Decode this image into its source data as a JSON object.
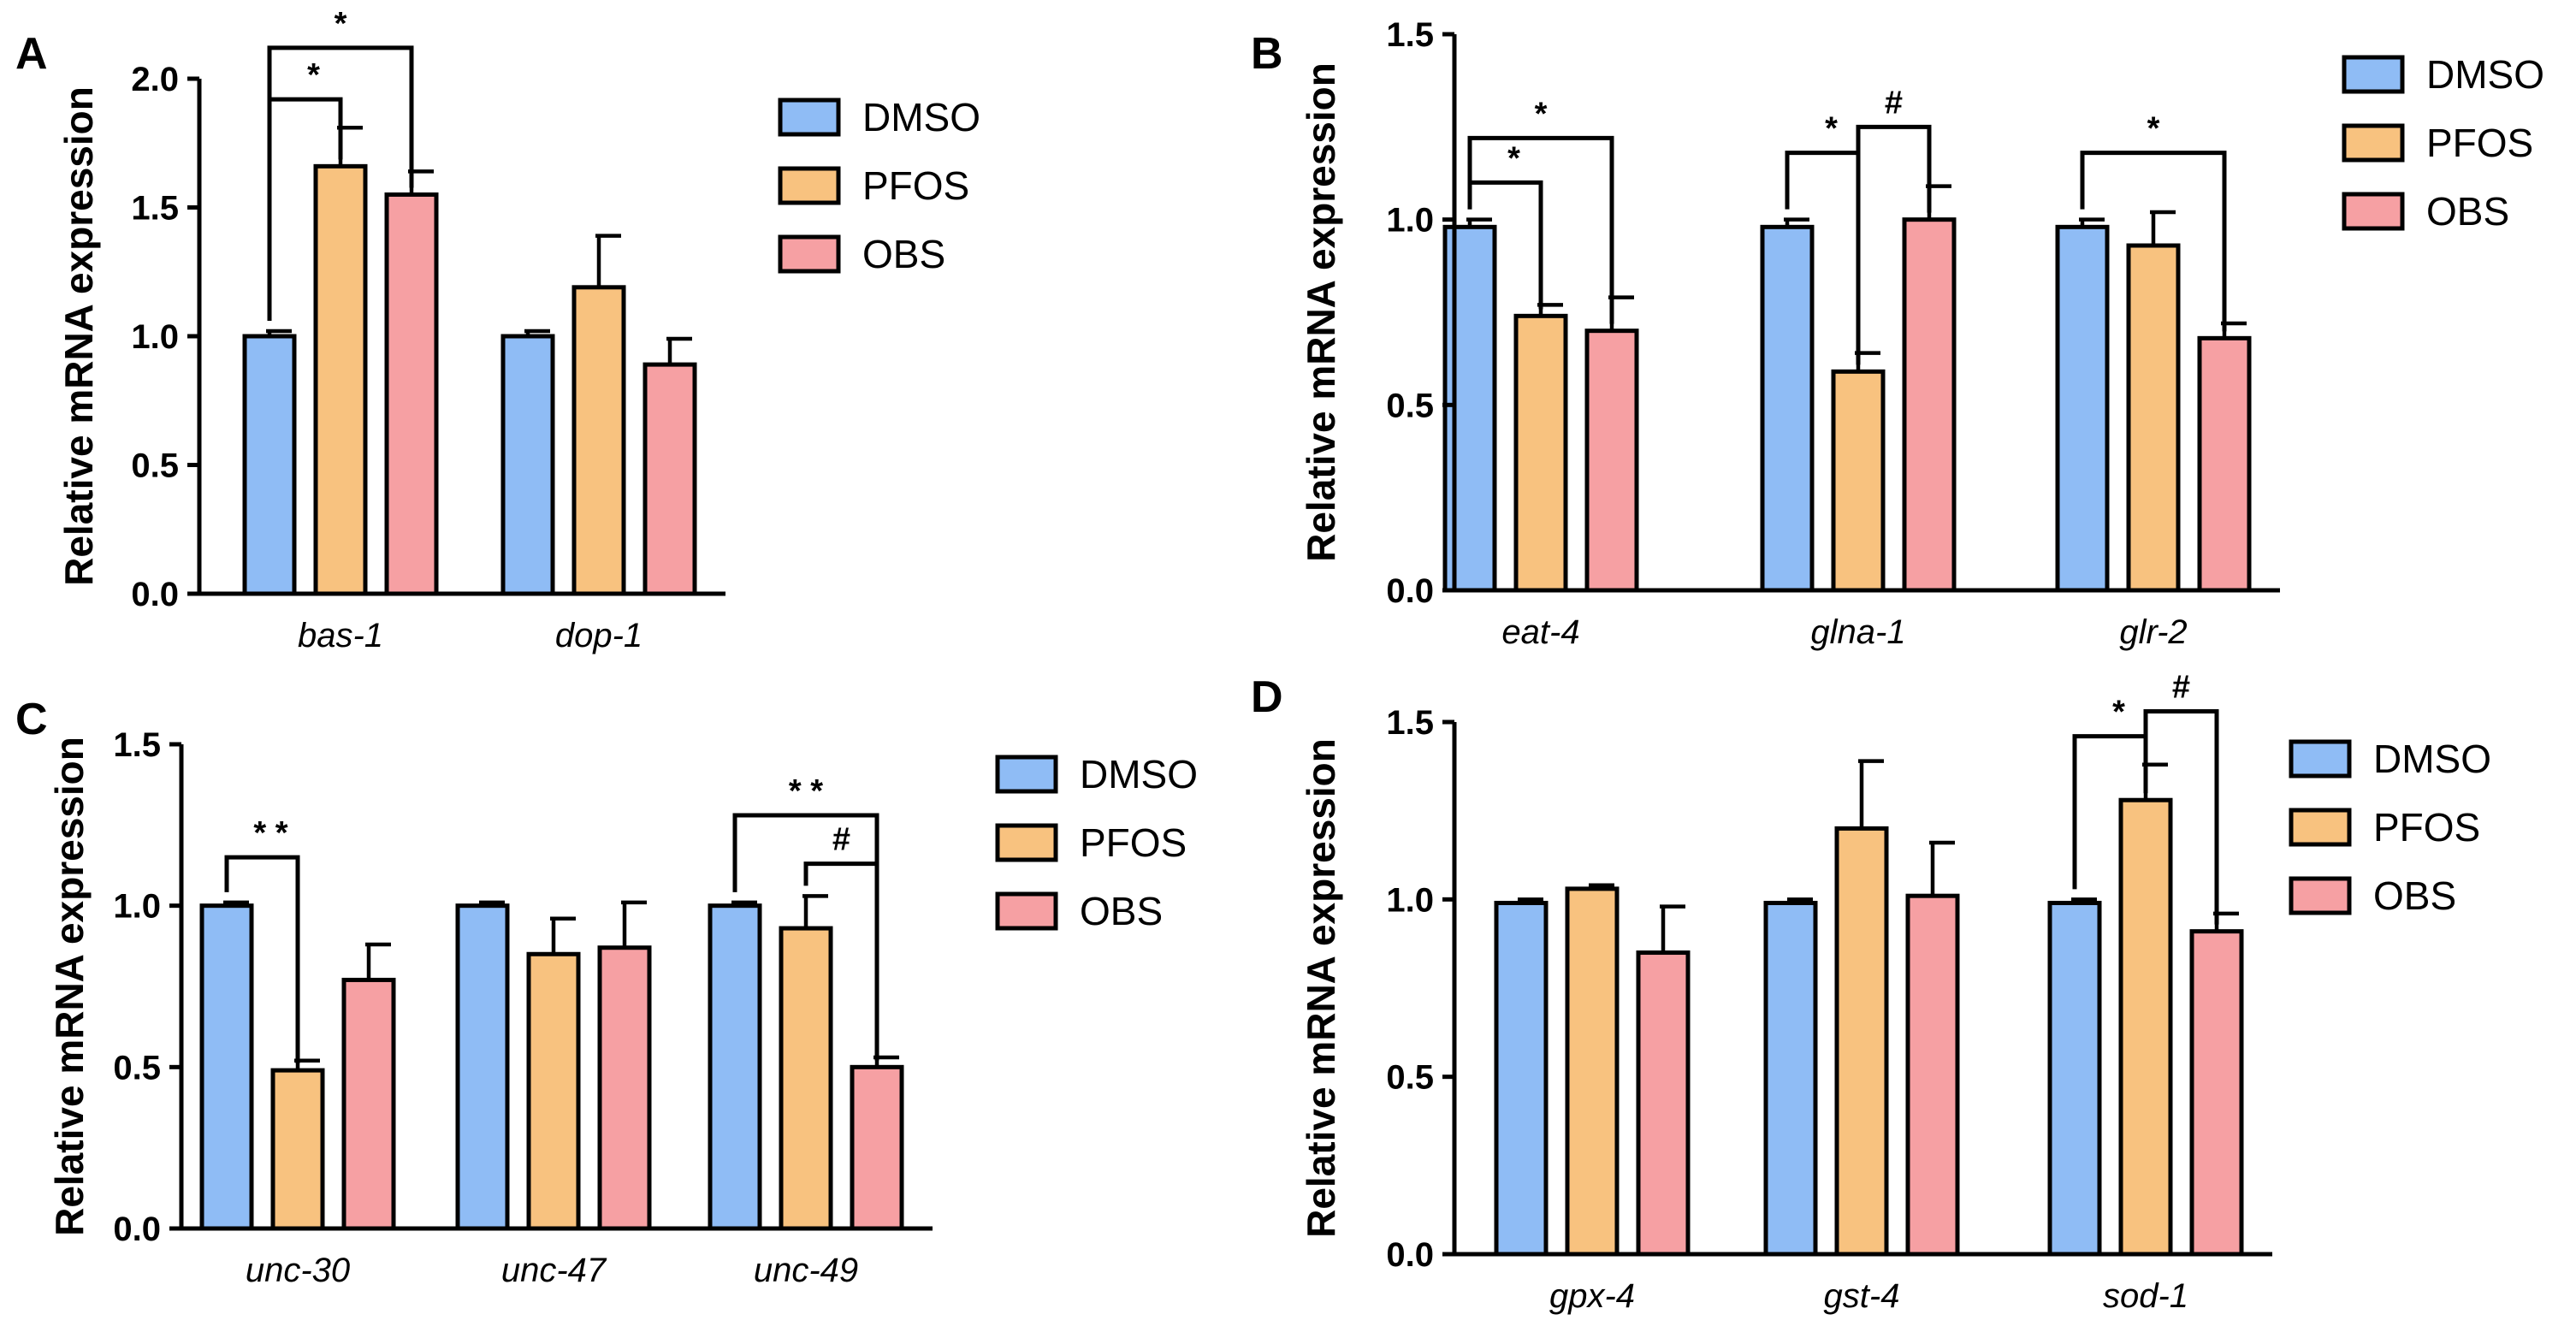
{
  "colors": {
    "DMSO": "#8fbcf5",
    "PFOS": "#f8c27f",
    "OBS": "#f6a0a3"
  },
  "legend": [
    "DMSO",
    "PFOS",
    "OBS"
  ],
  "chart_data": [
    {
      "panel": "A",
      "type": "bar",
      "ylabel": "Relative mRNA expression",
      "ylim": [
        0,
        2.0
      ],
      "yticks": [
        "0.0",
        "0.5",
        "1.0",
        "1.5",
        "2.0"
      ],
      "categories": [
        "bas-1",
        "dop-1"
      ],
      "series": [
        {
          "name": "DMSO",
          "values": [
            1.0,
            1.0
          ],
          "errors": [
            0.02,
            0.02
          ]
        },
        {
          "name": "PFOS",
          "values": [
            1.66,
            1.19
          ],
          "errors": [
            0.15,
            0.2
          ]
        },
        {
          "name": "OBS",
          "values": [
            1.55,
            0.89
          ],
          "errors": [
            0.09,
            0.1
          ]
        }
      ],
      "significance": [
        {
          "category": 0,
          "from": "DMSO",
          "to": "PFOS",
          "label": "*",
          "level": 1.92
        },
        {
          "category": 0,
          "from": "DMSO",
          "to": "OBS",
          "label": "*",
          "level": 2.12
        }
      ]
    },
    {
      "panel": "B",
      "type": "bar",
      "ylabel": "Relative mRNA expression",
      "ylim": [
        0,
        1.5
      ],
      "yticks": [
        "0.0",
        "0.5",
        "1.0",
        "1.5"
      ],
      "categories": [
        "eat-4",
        "glna-1",
        "glr-2"
      ],
      "series": [
        {
          "name": "DMSO",
          "values": [
            0.98,
            0.98,
            0.98
          ],
          "errors": [
            0.02,
            0.02,
            0.02
          ]
        },
        {
          "name": "PFOS",
          "values": [
            0.74,
            0.59,
            0.93
          ],
          "errors": [
            0.03,
            0.05,
            0.09
          ]
        },
        {
          "name": "OBS",
          "values": [
            0.7,
            1.0,
            0.68
          ],
          "errors": [
            0.09,
            0.09,
            0.04
          ]
        }
      ],
      "significance": [
        {
          "category": 0,
          "from": "DMSO",
          "to": "PFOS",
          "label": "*",
          "level": 1.1
        },
        {
          "category": 0,
          "from": "DMSO",
          "to": "OBS",
          "label": "*",
          "level": 1.22
        },
        {
          "category": 1,
          "from": "DMSO",
          "to": "PFOS",
          "label": "*",
          "level": 1.18
        },
        {
          "category": 1,
          "from": "PFOS",
          "to": "OBS",
          "label": "#",
          "level": 1.25
        },
        {
          "category": 2,
          "from": "DMSO",
          "to": "OBS",
          "label": "*",
          "level": 1.18
        }
      ]
    },
    {
      "panel": "C",
      "type": "bar",
      "ylabel": "Relative mRNA expression",
      "ylim": [
        0,
        1.5
      ],
      "yticks": [
        "0.0",
        "0.5",
        "1.0",
        "1.5"
      ],
      "categories": [
        "unc-30",
        "unc-47",
        "unc-49"
      ],
      "series": [
        {
          "name": "DMSO",
          "values": [
            1.0,
            1.0,
            1.0
          ],
          "errors": [
            0.01,
            0.01,
            0.01
          ]
        },
        {
          "name": "PFOS",
          "values": [
            0.49,
            0.85,
            0.93
          ],
          "errors": [
            0.03,
            0.11,
            0.1
          ]
        },
        {
          "name": "OBS",
          "values": [
            0.77,
            0.87,
            0.5
          ],
          "errors": [
            0.11,
            0.14,
            0.03
          ]
        }
      ],
      "significance": [
        {
          "category": 0,
          "from": "DMSO",
          "to": "PFOS",
          "label": "* *",
          "level": 1.15
        },
        {
          "category": 2,
          "from": "DMSO",
          "to": "OBS",
          "label": "* *",
          "level": 1.28
        },
        {
          "category": 2,
          "from": "PFOS",
          "to": "OBS",
          "label": "#",
          "level": 1.13
        }
      ]
    },
    {
      "panel": "D",
      "type": "bar",
      "ylabel": "Relative mRNA expression",
      "ylim": [
        0,
        1.5
      ],
      "yticks": [
        "0.0",
        "0.5",
        "1.0",
        "1.5"
      ],
      "categories": [
        "gpx-4",
        "gst-4",
        "sod-1"
      ],
      "series": [
        {
          "name": "DMSO",
          "values": [
            0.99,
            0.99,
            0.99
          ],
          "errors": [
            0.01,
            0.01,
            0.01
          ]
        },
        {
          "name": "PFOS",
          "values": [
            1.03,
            1.2,
            1.28
          ],
          "errors": [
            0.01,
            0.19,
            0.1
          ]
        },
        {
          "name": "OBS",
          "values": [
            0.85,
            1.01,
            0.91
          ],
          "errors": [
            0.13,
            0.15,
            0.05
          ]
        }
      ],
      "significance": [
        {
          "category": 2,
          "from": "DMSO",
          "to": "PFOS",
          "label": "*",
          "level": 1.46
        },
        {
          "category": 2,
          "from": "PFOS",
          "to": "OBS",
          "label": "#",
          "level": 1.53
        }
      ]
    }
  ]
}
